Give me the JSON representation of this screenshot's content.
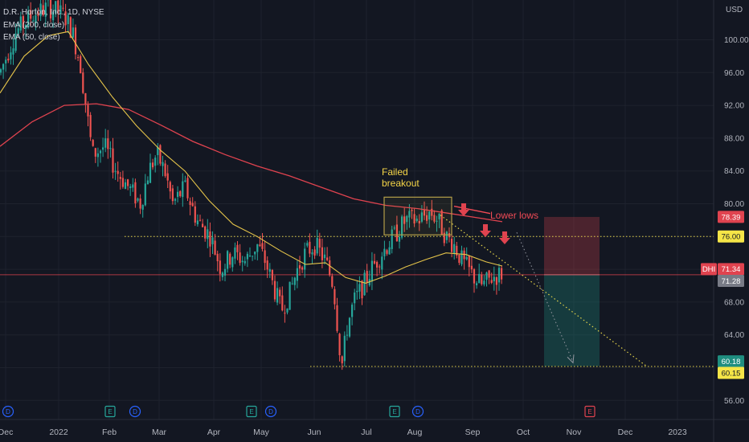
{
  "chart_data": {
    "type": "candlestick",
    "symbol": "D.R. Horton, Inc.",
    "interval": "1D",
    "exchange": "NYSE",
    "ticker": "DHI",
    "currency": "USD",
    "indicators": [
      {
        "name": "EMA (200, close)",
        "color": "#e0434f"
      },
      {
        "name": "EMA (50, close)",
        "color": "#e5c44a"
      }
    ],
    "y_axis": {
      "ticks": [
        "100.00",
        "96.00",
        "92.00",
        "88.00",
        "84.00",
        "80.00",
        "76.00",
        "72.00",
        "68.00",
        "64.00",
        "60.00",
        "56.00"
      ],
      "range": [
        54.6,
        103.8
      ]
    },
    "x_axis": {
      "labels": [
        "Dec",
        "2022",
        "Feb",
        "Mar",
        "Apr",
        "May",
        "Jun",
        "Jul",
        "Aug",
        "Sep",
        "Oct",
        "Nov",
        "Dec",
        "2023"
      ]
    },
    "price_labels": [
      {
        "text": "78.39",
        "value": 78.39,
        "color": "#e0434f",
        "text_color": "#ffffff"
      },
      {
        "text": "76.00",
        "value": 76.0,
        "color": "#f5e547",
        "text_color": "#131722"
      },
      {
        "text": "71.34",
        "value": 71.34,
        "color": "#e0434f",
        "text_color": "#ffffff",
        "ticker": true
      },
      {
        "text": "71.28",
        "value": 71.28,
        "color": "#787b86",
        "text_color": "#ffffff"
      },
      {
        "text": "60.18",
        "value": 60.18,
        "color": "#1f8e80",
        "text_color": "#ffffff"
      },
      {
        "text": "60.15",
        "value": 60.15,
        "color": "#f5e547",
        "text_color": "#131722"
      }
    ],
    "horizontal_levels": [
      {
        "value": 76.0,
        "style": "dotted",
        "color": "#e5d44a"
      },
      {
        "value": 60.15,
        "style": "dotted",
        "color": "#e5d44a"
      },
      {
        "value": 71.34,
        "style": "solid",
        "color": "#e0434f"
      }
    ],
    "annotations": [
      {
        "text_lines": [
          "Failed",
          "breakout"
        ],
        "color": "#f5d547"
      },
      {
        "text_lines": [
          "Lower lows"
        ],
        "color": "#f04a55"
      }
    ],
    "position": {
      "entry": 71.34,
      "stop": 78.39,
      "target": 60.18
    },
    "events": [
      {
        "kind": "D",
        "color": "#2962ff"
      },
      {
        "kind": "E",
        "color": "#26a69a"
      },
      {
        "kind": "D",
        "color": "#2962ff"
      },
      {
        "kind": "E",
        "color": "#26a69a"
      },
      {
        "kind": "D",
        "color": "#2962ff"
      },
      {
        "kind": "E",
        "color": "#26a69a"
      },
      {
        "kind": "D",
        "color": "#2962ff"
      },
      {
        "kind": "E",
        "color": "#e0434f"
      }
    ],
    "grid": true
  }
}
